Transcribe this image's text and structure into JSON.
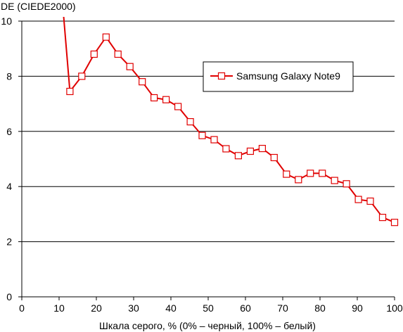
{
  "chart_data": {
    "type": "line",
    "title": "",
    "ylabel": "DE (CIEDE2000)",
    "xlabel": "Шкала серого, % (0% – черный, 100% – белый)",
    "xlim": [
      0,
      100
    ],
    "ylim": [
      0,
      10
    ],
    "x_ticks": [
      "0",
      "10",
      "20",
      "30",
      "40",
      "50",
      "60",
      "70",
      "80",
      "90",
      "100"
    ],
    "y_ticks": [
      "0",
      "2",
      "4",
      "6",
      "8",
      "10"
    ],
    "grid": "horizontal",
    "legend_position": "top-right",
    "series": [
      {
        "name": "Samsung Galaxy Note9",
        "color": "#e00000",
        "line_start": {
          "x": 11.2,
          "y": 10.2
        },
        "x": [
          12.9,
          16.1,
          19.4,
          22.6,
          25.8,
          29.0,
          32.3,
          35.5,
          38.7,
          41.9,
          45.2,
          48.4,
          51.6,
          54.8,
          58.1,
          61.3,
          64.5,
          67.7,
          71.0,
          74.2,
          77.4,
          80.6,
          83.9,
          87.1,
          90.3,
          93.5,
          96.8,
          100.0
        ],
        "y": [
          7.45,
          8.0,
          8.8,
          9.42,
          8.8,
          8.35,
          7.8,
          7.22,
          7.15,
          6.9,
          6.35,
          5.85,
          5.7,
          5.37,
          5.12,
          5.28,
          5.38,
          5.05,
          4.45,
          4.25,
          4.48,
          4.48,
          4.22,
          4.1,
          3.53,
          3.47,
          2.88,
          2.7
        ]
      }
    ]
  }
}
